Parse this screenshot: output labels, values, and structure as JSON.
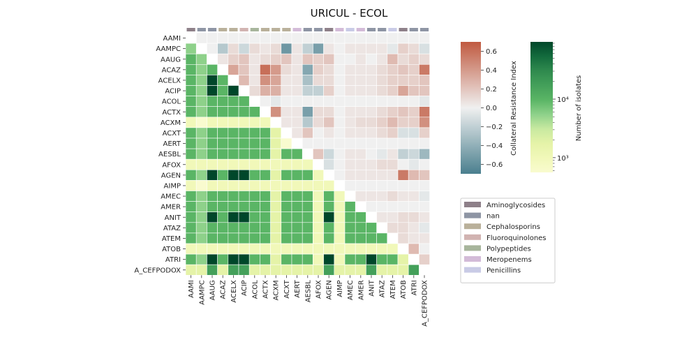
{
  "chart_data": {
    "type": "heatmap",
    "title": "URICUL - ECOL",
    "categories": [
      "AAMI",
      "AAMPC",
      "AAUG",
      "ACAZ",
      "ACELX",
      "ACIP",
      "ACOL",
      "ACTX",
      "ACXM",
      "ACXT",
      "AERT",
      "AESBL",
      "AFOX",
      "AGEN",
      "AIMP",
      "AMEC",
      "AMER",
      "ANIT",
      "ATAZ",
      "ATEM",
      "ATOB",
      "ATRI",
      "A_CEFPODOX"
    ],
    "category_groups": [
      "Aminoglycosides",
      "nan",
      "nan",
      "Cephalosporins",
      "Cephalosporins",
      "Fluoroquinolones",
      "Polypeptides",
      "Cephalosporins",
      "Cephalosporins",
      "Cephalosporins",
      "Meropenems",
      "nan",
      "nan",
      "Aminoglycosides",
      "Meropenems",
      "Penicillins",
      "Meropenems",
      "nan",
      "nan",
      "Penicillins",
      "Aminoglycosides",
      "nan",
      "nan"
    ],
    "lower_triangle": {
      "description_key": "Number of isolates",
      "row_levels": [
        [],
        [
          4
        ],
        [
          5,
          4
        ],
        [
          5,
          4,
          5
        ],
        [
          5,
          4,
          9,
          5
        ],
        [
          5,
          4,
          9,
          5,
          9
        ],
        [
          5,
          4,
          5,
          5,
          5,
          5
        ],
        [
          5,
          4,
          5,
          5,
          5,
          5,
          5
        ],
        [
          1,
          0,
          1,
          1,
          1,
          1,
          1,
          1
        ],
        [
          5,
          4,
          5,
          5,
          5,
          5,
          5,
          5,
          2
        ],
        [
          5,
          4,
          5,
          5,
          5,
          5,
          5,
          5,
          2,
          0
        ],
        [
          5,
          4,
          5,
          5,
          5,
          5,
          5,
          5,
          2,
          5,
          5
        ],
        [
          1,
          1,
          1,
          1,
          1,
          1,
          1,
          1,
          1,
          1,
          1,
          1
        ],
        [
          5,
          4,
          9,
          5,
          9,
          9,
          5,
          5,
          2,
          5,
          5,
          5,
          1
        ],
        [
          1,
          0,
          1,
          1,
          1,
          1,
          1,
          1,
          1,
          1,
          1,
          1,
          1,
          1
        ],
        [
          5,
          4,
          5,
          5,
          5,
          5,
          5,
          5,
          2,
          5,
          5,
          5,
          1,
          5,
          1
        ],
        [
          5,
          4,
          5,
          5,
          5,
          5,
          5,
          5,
          2,
          5,
          5,
          5,
          1,
          5,
          1,
          5
        ],
        [
          5,
          4,
          9,
          5,
          9,
          9,
          5,
          5,
          2,
          5,
          5,
          5,
          1,
          9,
          1,
          5,
          5
        ],
        [
          5,
          4,
          5,
          5,
          5,
          5,
          5,
          5,
          2,
          5,
          5,
          5,
          1,
          5,
          1,
          5,
          5,
          5
        ],
        [
          5,
          4,
          5,
          5,
          5,
          5,
          5,
          5,
          2,
          5,
          5,
          5,
          1,
          5,
          1,
          5,
          5,
          5,
          5
        ],
        [
          1,
          1,
          1,
          1,
          1,
          1,
          1,
          1,
          1,
          1,
          1,
          1,
          1,
          1,
          1,
          1,
          1,
          1,
          1,
          1
        ],
        [
          5,
          4,
          9,
          5,
          9,
          9,
          5,
          5,
          2,
          5,
          5,
          5,
          1,
          9,
          1,
          5,
          5,
          9,
          5,
          5,
          2
        ],
        [
          2,
          2,
          6,
          2,
          6,
          6,
          2,
          2,
          2,
          2,
          2,
          2,
          2,
          6,
          2,
          2,
          2,
          6,
          2,
          2,
          2,
          6
        ]
      ]
    },
    "upper_triangle": {
      "description_key": "Collateral Resistance Index",
      "rows": {
        "AAMI": [
          null,
          0,
          0,
          0,
          0,
          0,
          0,
          0,
          0,
          0,
          0,
          0,
          0,
          0,
          0,
          0,
          0,
          0,
          0,
          0,
          0,
          0,
          0
        ],
        "AAMPC": [
          null,
          null,
          0,
          -0.25,
          0.1,
          -0.15,
          0.1,
          0.05,
          0.1,
          -0.55,
          0.05,
          -0.2,
          -0.5,
          0.05,
          0,
          0.05,
          0.05,
          0.05,
          0.05,
          -0.05,
          0.15,
          0.1,
          -0.1
        ],
        "AAUG": [
          null,
          null,
          null,
          0.05,
          0.15,
          0.2,
          0.05,
          0.1,
          0.15,
          0.2,
          0.05,
          0.2,
          0.15,
          0.2,
          0,
          0,
          0.05,
          0,
          0.05,
          0.25,
          0.1,
          0.15,
          0.1
        ],
        "ACAZ": [
          null,
          null,
          null,
          null,
          0.35,
          0.2,
          0.05,
          0.6,
          0.4,
          0.1,
          0.05,
          -0.45,
          0.15,
          0.1,
          0,
          0.05,
          0.05,
          0.05,
          0.1,
          0.15,
          0.2,
          0.15,
          0.55
        ],
        "ACELX": [
          null,
          null,
          null,
          null,
          null,
          0.25,
          0.05,
          0.45,
          0.35,
          0.05,
          0.05,
          -0.3,
          0.1,
          0.1,
          0,
          0.05,
          0.05,
          0.05,
          0.1,
          0.15,
          0.15,
          0.15,
          0.2
        ],
        "ACIP": [
          null,
          null,
          null,
          null,
          null,
          null,
          0.1,
          0.3,
          0.3,
          0.05,
          0.05,
          -0.2,
          -0.2,
          0.15,
          0,
          0.05,
          0.05,
          0.05,
          0.1,
          0.15,
          0.35,
          0.2,
          0.2
        ],
        "ACOL": [
          null,
          null,
          null,
          null,
          null,
          null,
          null,
          0,
          -0.05,
          0,
          0,
          0,
          0,
          0,
          0,
          0,
          0,
          0,
          0,
          0,
          0,
          0,
          -0.05
        ],
        "ACTX": [
          null,
          null,
          null,
          null,
          null,
          null,
          null,
          null,
          0.45,
          0.05,
          0.05,
          -0.5,
          0.1,
          0.1,
          0,
          0.05,
          0.05,
          0.05,
          0.1,
          0.15,
          0.2,
          0.15,
          0.55
        ],
        "ACXM": [
          null,
          null,
          null,
          null,
          null,
          null,
          null,
          null,
          null,
          0.05,
          0.05,
          -0.25,
          0.1,
          0.2,
          0,
          0.05,
          0.1,
          0.1,
          0.15,
          0.25,
          0.15,
          0.15,
          0.45
        ],
        "ACXT": [
          null,
          null,
          null,
          null,
          null,
          null,
          null,
          null,
          null,
          null,
          0.05,
          0.2,
          0,
          0.05,
          0,
          0.05,
          0.05,
          0.05,
          0.1,
          0.15,
          -0.1,
          -0.1,
          0.15
        ],
        "AERT": [
          null,
          null,
          null,
          null,
          null,
          null,
          null,
          null,
          null,
          null,
          null,
          0,
          0,
          0,
          0,
          0,
          0,
          0,
          0,
          0,
          0,
          0,
          0
        ],
        "AESBL": [
          null,
          null,
          null,
          null,
          null,
          null,
          null,
          null,
          null,
          null,
          null,
          null,
          0.2,
          -0.15,
          0,
          0.05,
          0.05,
          0,
          -0.05,
          0.05,
          -0.2,
          -0.15,
          -0.35
        ],
        "AFOX": [
          null,
          null,
          null,
          null,
          null,
          null,
          null,
          null,
          null,
          null,
          null,
          null,
          null,
          -0.1,
          0,
          0.05,
          0.05,
          0.05,
          0.1,
          0.1,
          0,
          -0.05,
          0
        ],
        "AGEN": [
          null,
          null,
          null,
          null,
          null,
          null,
          null,
          null,
          null,
          null,
          null,
          null,
          null,
          null,
          0,
          0.05,
          0.05,
          0.05,
          0.05,
          0.05,
          0.55,
          0.25,
          0.2
        ],
        "AIMP": [
          null,
          null,
          null,
          null,
          null,
          null,
          null,
          null,
          null,
          null,
          null,
          null,
          null,
          null,
          null,
          0,
          0,
          0,
          0,
          0,
          0,
          0,
          0
        ],
        "AMEC": [
          null,
          null,
          null,
          null,
          null,
          null,
          null,
          null,
          null,
          null,
          null,
          null,
          null,
          null,
          null,
          null,
          0.05,
          0.05,
          0.05,
          0.1,
          0.05,
          0.05,
          -0.05
        ],
        "AMER": [
          null,
          null,
          null,
          null,
          null,
          null,
          null,
          null,
          null,
          null,
          null,
          null,
          null,
          null,
          null,
          null,
          null,
          0,
          0,
          0,
          0,
          0,
          0
        ],
        "ANIT": [
          null,
          null,
          null,
          null,
          null,
          null,
          null,
          null,
          null,
          null,
          null,
          null,
          null,
          null,
          null,
          null,
          null,
          null,
          0.05,
          0.05,
          0.1,
          0.1,
          0.05
        ],
        "ATAZ": [
          null,
          null,
          null,
          null,
          null,
          null,
          null,
          null,
          null,
          null,
          null,
          null,
          null,
          null,
          null,
          null,
          null,
          null,
          null,
          0.1,
          0.1,
          0.05,
          -0.05
        ],
        "ATEM": [
          null,
          null,
          null,
          null,
          null,
          null,
          null,
          null,
          null,
          null,
          null,
          null,
          null,
          null,
          null,
          null,
          null,
          null,
          null,
          null,
          0.1,
          0.05,
          0.05
        ],
        "ATOB": [
          null,
          null,
          null,
          null,
          null,
          null,
          null,
          null,
          null,
          null,
          null,
          null,
          null,
          null,
          null,
          null,
          null,
          null,
          null,
          null,
          null,
          0.25,
          0
        ],
        "ATRI": [
          null,
          null,
          null,
          null,
          null,
          null,
          null,
          null,
          null,
          null,
          null,
          null,
          null,
          null,
          null,
          null,
          null,
          null,
          null,
          null,
          null,
          null,
          0.15
        ],
        "A_CEFPODOX": [
          null,
          null,
          null,
          null,
          null,
          null,
          null,
          null,
          null,
          null,
          null,
          null,
          null,
          null,
          null,
          null,
          null,
          null,
          null,
          null,
          null,
          null,
          null
        ]
      }
    },
    "colorbar_cri": {
      "label": "Collateral Resistance Index",
      "range": [
        -0.7,
        0.7
      ],
      "ticks": [
        "0.6",
        "0.4",
        "0.2",
        "0.0",
        "−0.2",
        "−0.4",
        "−0.6"
      ],
      "tick_values": [
        0.6,
        0.4,
        0.2,
        0.0,
        -0.2,
        -0.4,
        -0.6
      ]
    },
    "colorbar_isolates": {
      "label": "Number of isolates",
      "scale": "log",
      "ticks": [
        "10⁴",
        "10³"
      ]
    },
    "legend": {
      "placement": "right",
      "entries": [
        {
          "name": "Aminoglycosides",
          "color": "#8e8089"
        },
        {
          "name": "nan",
          "color": "#8e95a4"
        },
        {
          "name": "Cephalosporins",
          "color": "#b9b09a"
        },
        {
          "name": "Fluoroquinolones",
          "color": "#d1b3b1"
        },
        {
          "name": "Polypeptides",
          "color": "#a7b59c"
        },
        {
          "name": "Meropenems",
          "color": "#d3bbd8"
        },
        {
          "name": "Penicillins",
          "color": "#c9cbe6"
        }
      ]
    },
    "colors": {
      "isolate_levels": [
        "#f9fbcf",
        "#f1f8b9",
        "#e5f3a8",
        "#c8e9a0",
        "#8ed18a",
        "#5ab565",
        "#44a05a",
        "#2f8a4e",
        "#136b3d",
        "#00472a"
      ],
      "cri_negative": "#4a7f8e",
      "cri_zero": "#f0f0f0",
      "cri_positive": "#c05a40"
    }
  }
}
